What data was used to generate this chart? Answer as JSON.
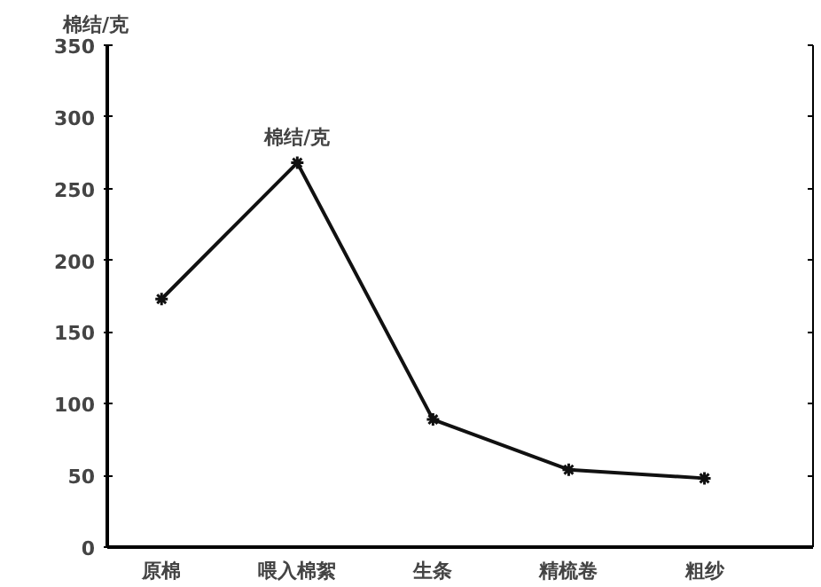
{
  "chart_data": {
    "type": "line",
    "ylabel": "棉结/克",
    "categories": [
      "原棉",
      "喂入棉絮",
      "生条",
      "精梳卷",
      "粗纱"
    ],
    "series": [
      {
        "name": "棉结/克",
        "color": "#111111",
        "values": [
          173,
          268,
          89,
          54,
          48
        ]
      }
    ],
    "ylim": [
      0,
      350
    ],
    "yticks": [
      0,
      50,
      100,
      150,
      200,
      250,
      300,
      350
    ],
    "marker": "cross",
    "line_style": "solid",
    "grid": false,
    "legend": false
  }
}
